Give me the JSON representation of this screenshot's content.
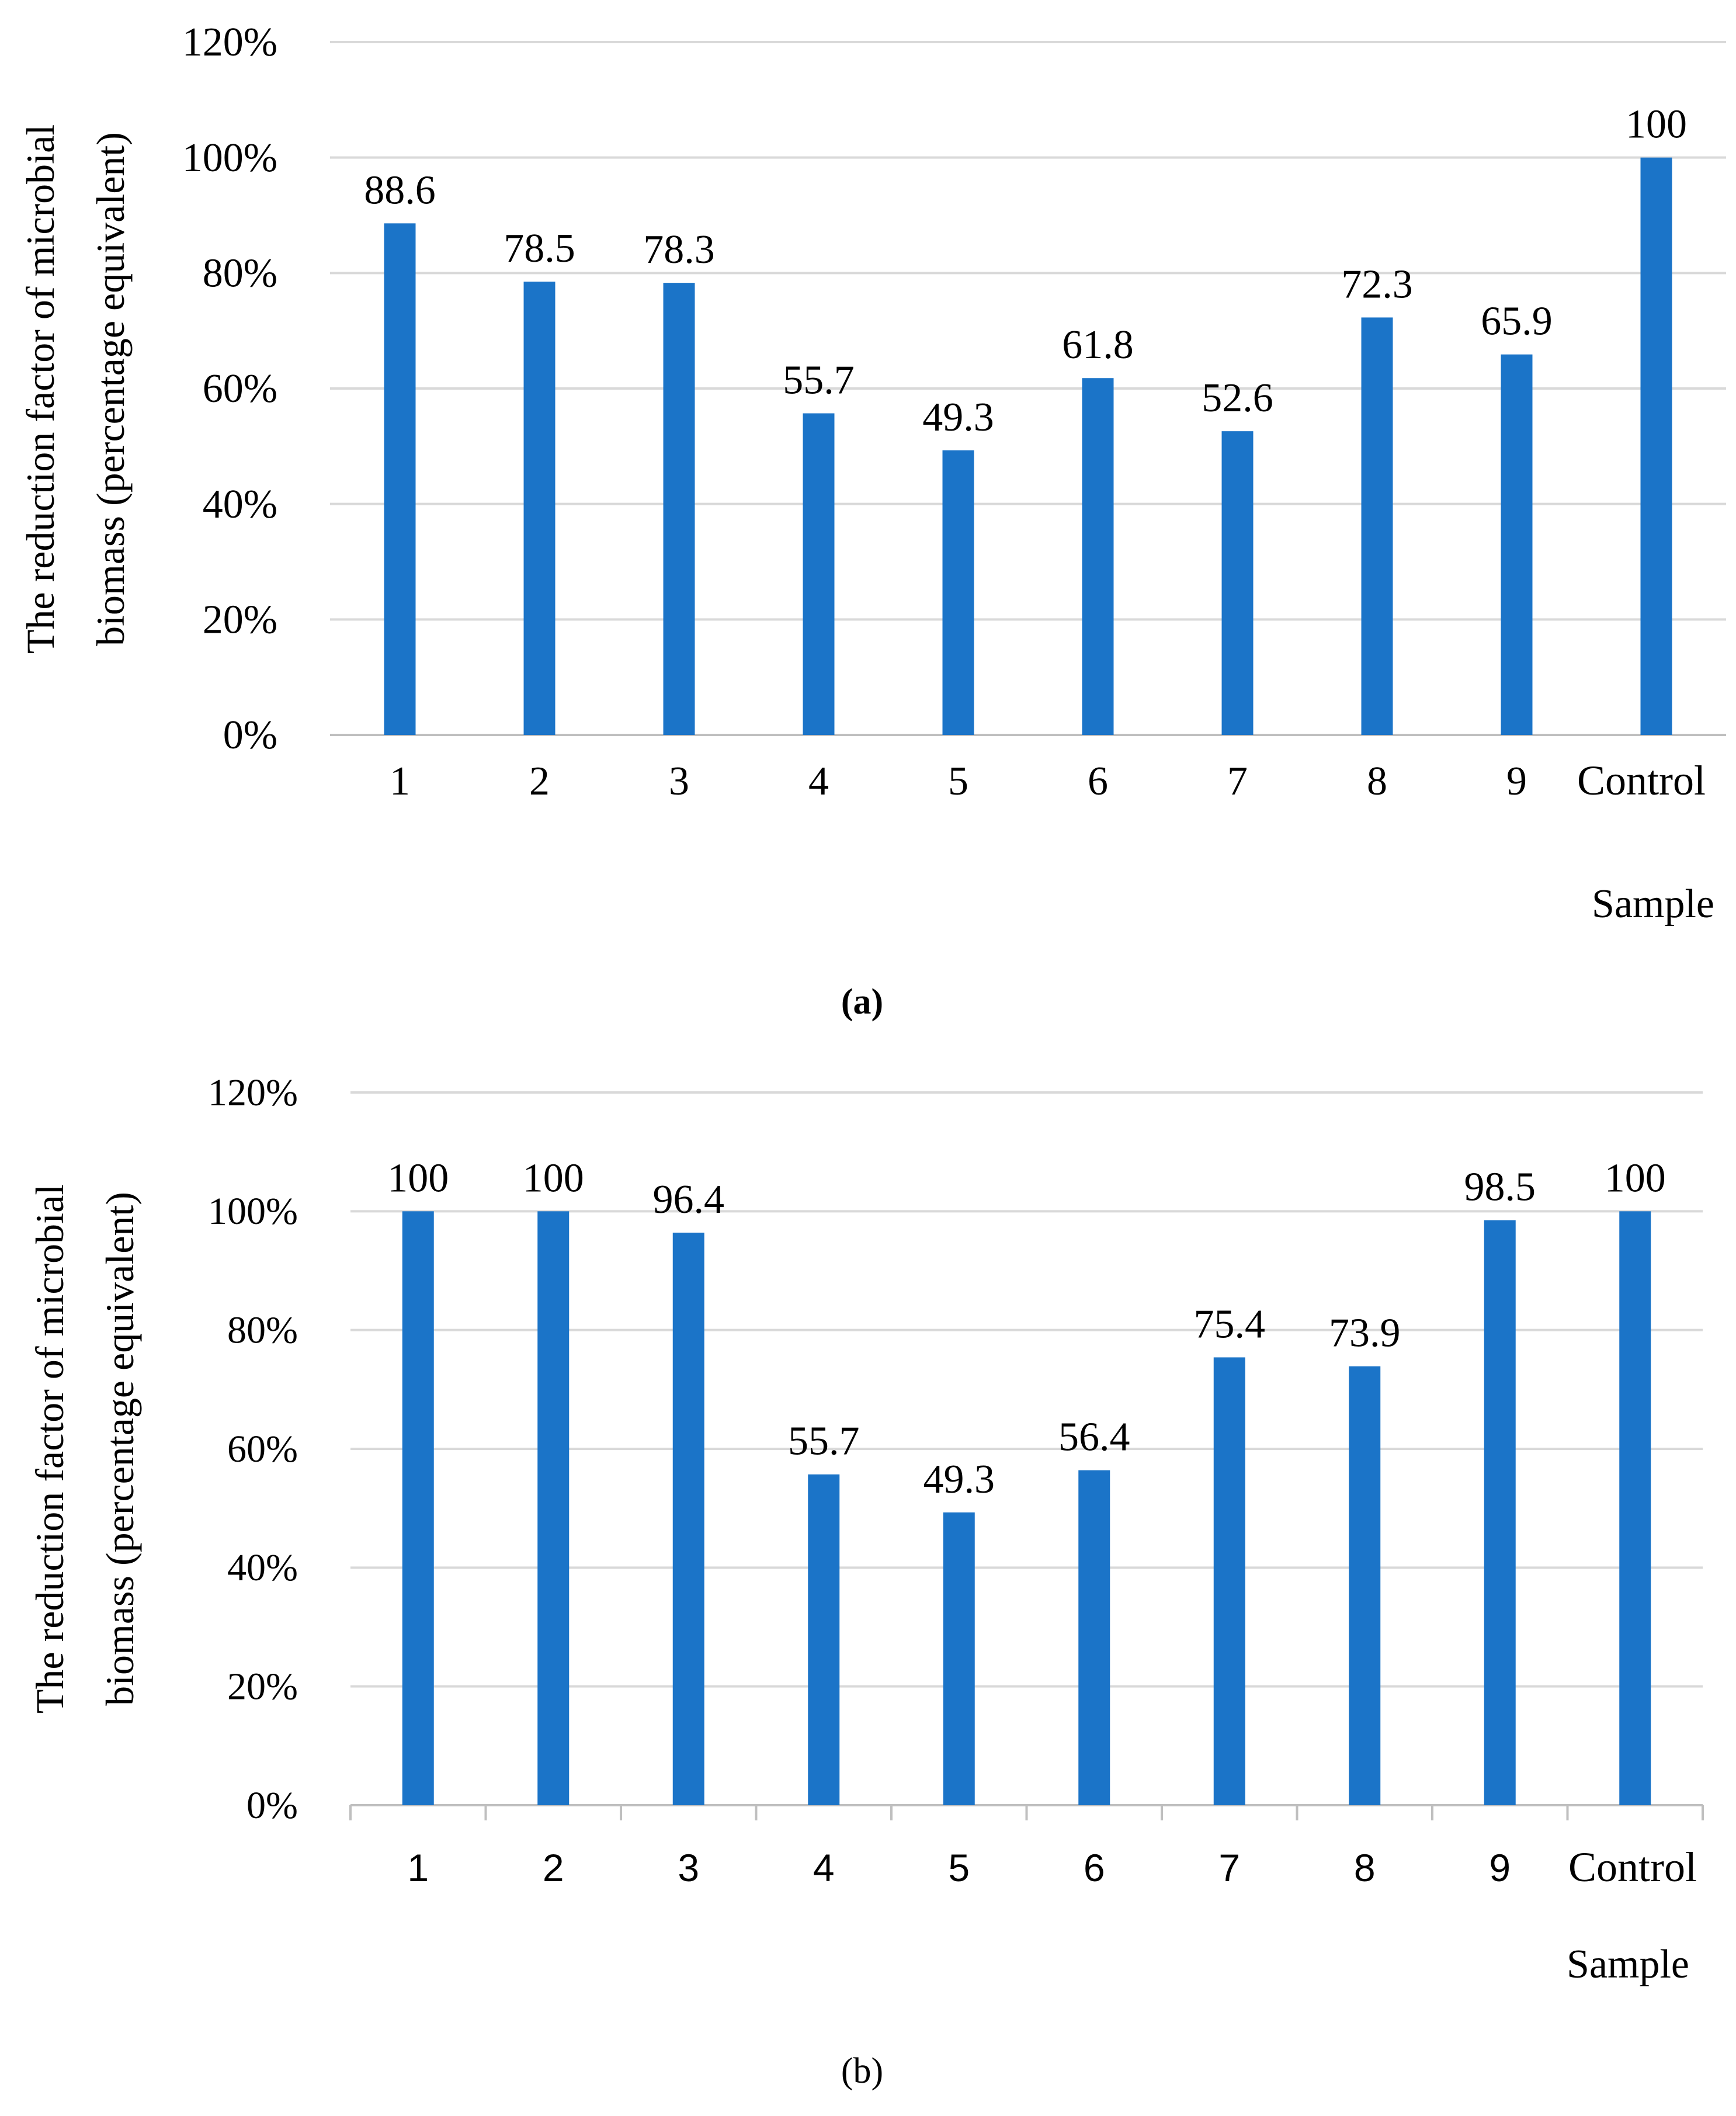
{
  "chart_data": [
    {
      "panel": "(a)",
      "type": "bar",
      "categories": [
        "1",
        "2",
        "3",
        "4",
        "5",
        "6",
        "7",
        "8",
        "9",
        "Control"
      ],
      "values": [
        88.6,
        78.5,
        78.3,
        55.7,
        49.3,
        61.8,
        52.6,
        72.3,
        65.9,
        100
      ],
      "data_labels": [
        "88.6",
        "78.5",
        "78.3",
        "55.7",
        "49.3",
        "61.8",
        "52.6",
        "72.3",
        "65.9",
        "100"
      ],
      "ylabel_line1": "The reduction factor of microbial",
      "ylabel_line2": "biomass (percentage equivalent)",
      "xlabel": "Sample",
      "ylim": [
        0,
        120
      ],
      "yticks": [
        0,
        20,
        40,
        60,
        80,
        100,
        120
      ],
      "ytick_labels": [
        "0%",
        "20%",
        "40%",
        "60%",
        "80%",
        "100%",
        "120%"
      ],
      "grid": true,
      "bar_color": "#1B74C8",
      "grid_color": "#D9D9D9",
      "axis_color": "#BFBFBF"
    },
    {
      "panel": "(b)",
      "type": "bar",
      "categories": [
        "1",
        "2",
        "3",
        "4",
        "5",
        "6",
        "7",
        "8",
        "9",
        "Control"
      ],
      "values": [
        100,
        100,
        96.4,
        55.7,
        49.3,
        56.4,
        75.4,
        73.9,
        98.5,
        100
      ],
      "data_labels": [
        "100",
        "100",
        "96.4",
        "55.7",
        "49.3",
        "56.4",
        "75.4",
        "73.9",
        "98.5",
        "100"
      ],
      "ylabel_line1": "The reduction factor of microbial",
      "ylabel_line2": "biomass (percentage equivalent)",
      "xlabel": "Sample",
      "ylim": [
        0,
        120
      ],
      "yticks": [
        0,
        20,
        40,
        60,
        80,
        100,
        120
      ],
      "ytick_labels": [
        "0%",
        "20%",
        "40%",
        "60%",
        "80%",
        "100%",
        "120%"
      ],
      "grid": true,
      "bar_color": "#1B74C8",
      "grid_color": "#D9D9D9",
      "axis_color": "#BFBFBF"
    }
  ]
}
